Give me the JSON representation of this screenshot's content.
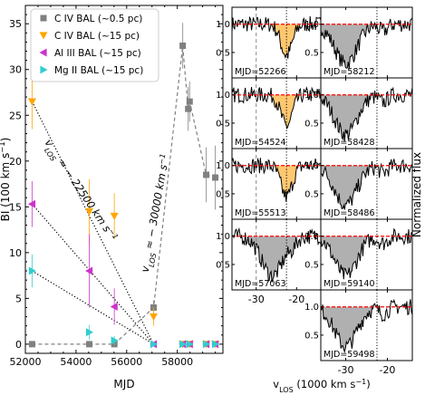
{
  "chart_data": [
    {
      "type": "scatter",
      "panel": "BI vs MJD",
      "xlabel": "MJD",
      "ylabel": "BI (100 km s$^{-1}$)",
      "ylabel_parts": [
        "BI (100 km s",
        "−1",
        ")"
      ],
      "xlim": [
        52000,
        59800
      ],
      "ylim": [
        -1,
        37
      ],
      "xticks": [
        52000,
        54000,
        56000,
        58000
      ],
      "yticks": [
        0,
        5,
        10,
        15,
        20,
        25,
        30,
        35
      ],
      "legend_position": "top-left",
      "series": [
        {
          "name": "C IV BAL (~0.5 pc)",
          "color": "#808080",
          "marker": "square",
          "line": "dashed",
          "points": [
            {
              "x": 52266,
              "y": 0,
              "err": 0.3
            },
            {
              "x": 54524,
              "y": 0,
              "err": 0.3
            },
            {
              "x": 55513,
              "y": 0,
              "err": 0.3
            },
            {
              "x": 57063,
              "y": 4.0,
              "err": 0.8
            },
            {
              "x": 58212,
              "y": 32.6,
              "err": 2.5
            },
            {
              "x": 58428,
              "y": 25.7,
              "err": 2.4
            },
            {
              "x": 58486,
              "y": 26.5,
              "err": 2.2
            },
            {
              "x": 59140,
              "y": 18.5,
              "err": 3.0
            },
            {
              "x": 59498,
              "y": 18.2,
              "err": 3.5
            }
          ]
        },
        {
          "name": "C IV BAL (~15 pc)",
          "color": "#ffa500",
          "marker": "triangle-down",
          "line": "none",
          "points": [
            {
              "x": 52266,
              "y": 26.5,
              "err": 3.0
            },
            {
              "x": 54524,
              "y": 14.5,
              "err": 3.5
            },
            {
              "x": 55513,
              "y": 14.0,
              "err": 2.5
            },
            {
              "x": 57063,
              "y": 3.0,
              "err": 1.0
            },
            {
              "x": 58212,
              "y": 0,
              "err": 0.2
            },
            {
              "x": 58486,
              "y": 0,
              "err": 0.2
            },
            {
              "x": 59140,
              "y": 0,
              "err": 0.2
            },
            {
              "x": 59498,
              "y": 0,
              "err": 0.2
            }
          ]
        },
        {
          "name": "Al III BAL (~15 pc)",
          "color": "#cc33cc",
          "marker": "triangle-left",
          "line": "none",
          "points": [
            {
              "x": 52266,
              "y": 15.3,
              "err": 2.5
            },
            {
              "x": 54524,
              "y": 8.0,
              "err": 4.0
            },
            {
              "x": 55513,
              "y": 4.1,
              "err": 2.0
            },
            {
              "x": 57063,
              "y": 0,
              "err": 0.2
            },
            {
              "x": 58212,
              "y": 0,
              "err": 0.2
            },
            {
              "x": 58486,
              "y": 0,
              "err": 0.2
            },
            {
              "x": 59140,
              "y": 0,
              "err": 0.2
            },
            {
              "x": 59498,
              "y": 0,
              "err": 0.2
            }
          ]
        },
        {
          "name": "Mg II BAL (~15 pc)",
          "color": "#33cccc",
          "marker": "triangle-right",
          "line": "none",
          "points": [
            {
              "x": 52266,
              "y": 8.0,
              "err": 1.8
            },
            {
              "x": 54524,
              "y": 1.3,
              "err": 0.8
            },
            {
              "x": 55513,
              "y": 0.4,
              "err": 0.5
            },
            {
              "x": 57063,
              "y": 0,
              "err": 0.2
            },
            {
              "x": 58212,
              "y": 0,
              "err": 0.2
            },
            {
              "x": 58486,
              "y": 0,
              "err": 0.2
            },
            {
              "x": 59140,
              "y": 0,
              "err": 0.2
            },
            {
              "x": 59498,
              "y": 0,
              "err": 0.2
            }
          ]
        }
      ],
      "trend_lines": [
        {
          "style": "dotted",
          "from": [
            52266,
            26.5
          ],
          "to": [
            57063,
            0
          ]
        },
        {
          "style": "dotted",
          "from": [
            52266,
            15.3
          ],
          "to": [
            57063,
            0
          ]
        },
        {
          "style": "dotted",
          "from": [
            52266,
            8.0
          ],
          "to": [
            57063,
            0
          ]
        }
      ],
      "annotations": [
        {
          "text": "v_LOS ≈ −22500 km s^−1",
          "parts": [
            "v",
            "LOS",
            " ≈ − 22500 km s",
            "−1"
          ]
        },
        {
          "text": "v_LOS ≈ −30000 km s^−1",
          "parts": [
            "v",
            "LOS",
            " ≈ − 30000 km s",
            "−1"
          ]
        }
      ]
    },
    {
      "type": "line",
      "panel": "spectra grid",
      "xlabel": "v_LOS (1000 km s^−1)",
      "xlabel_parts": [
        "v",
        "LOS",
        " (1000 km s",
        "−1",
        ")"
      ],
      "ylabel": "Normalized flux",
      "xlim": [
        -36,
        -14
      ],
      "ylim": [
        0.05,
        1.3
      ],
      "xticks": [
        -30,
        -20
      ],
      "yticks": [
        0.5,
        1.0
      ],
      "reference_level": 1.0,
      "reference_color": "#ff0000",
      "marker_lines": [
        -30,
        -22.5
      ],
      "panels": [
        {
          "mjd_label": "MJD=52266",
          "shade": "orange",
          "dip_center": -22.5
        },
        {
          "mjd_label": "MJD=58212",
          "shade": "gray",
          "dip_center": -30
        },
        {
          "mjd_label": "MJD=54524",
          "shade": "orange",
          "dip_center": -22.5
        },
        {
          "mjd_label": "MJD=58428",
          "shade": "gray",
          "dip_center": -30
        },
        {
          "mjd_label": "MJD=55513",
          "shade": "orange",
          "dip_center": -22.5
        },
        {
          "mjd_label": "MJD=58486",
          "shade": "gray",
          "dip_center": -30
        },
        {
          "mjd_label": "MJD=57063",
          "shade": "gray",
          "dip_center": -26
        },
        {
          "mjd_label": "MJD=59140",
          "shade": "gray",
          "dip_center": -30
        },
        {
          "mjd_label": "MJD=59498",
          "shade": "gray",
          "dip_center": -30
        }
      ]
    }
  ]
}
